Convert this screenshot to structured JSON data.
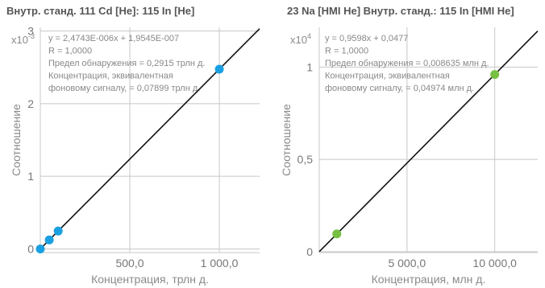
{
  "chart_data": [
    {
      "type": "scatter",
      "title": "Внутр. станд. 111 Cd [He]: 115 In [He]",
      "xlabel": "Концентрация, трлн д.",
      "ylabel": "Соотношение",
      "y_multiplier": "x10",
      "y_multiplier_exp": "-3",
      "xlim": [
        0,
        1225
      ],
      "ylim": [
        -0.05,
        3.05
      ],
      "x_ticks": [
        500,
        1000
      ],
      "x_tick_labels": [
        "500,0",
        "1 000,0"
      ],
      "y_ticks": [
        0,
        1,
        2,
        3
      ],
      "y_tick_labels": [
        "0",
        "1",
        "2",
        "3"
      ],
      "grid": true,
      "point_color": "#1aa0e0",
      "points": [
        {
          "x": 0,
          "y": 0.0002
        },
        {
          "x": 50,
          "y": 0.124
        },
        {
          "x": 100,
          "y": 0.247
        },
        {
          "x": 1000,
          "y": 2.4745
        }
      ],
      "fit": {
        "slope": 0.0024743,
        "intercept": 0.00019545
      },
      "annotations": [
        "y = 2,4743E-006x + 1,9545E-007",
        "R = 1,0000",
        "Предел обнаружения = 0,2915 трлн д.",
        "Концентрация, эквивалентная",
        "фоновому сигналу, = 0,07899 трлн д."
      ]
    },
    {
      "type": "scatter",
      "title": "23 Na [HMI He] Внутр. станд.: 115 In [HMI He]",
      "xlabel": "Концентрация, млн д.",
      "ylabel": "Соотношение",
      "y_multiplier": "x10",
      "y_multiplier_exp": "4",
      "xlim": [
        0,
        12450
      ],
      "ylim": [
        -0.005,
        1.215
      ],
      "x_ticks": [
        5000,
        10000
      ],
      "x_tick_labels": [
        "5 000,0",
        "10 000,0"
      ],
      "y_ticks": [
        0,
        0.5,
        1
      ],
      "y_tick_labels": [
        "0",
        "0,5",
        "1"
      ],
      "grid": true,
      "point_color": "#78c043",
      "points": [
        {
          "x": 1000,
          "y": 0.0964
        },
        {
          "x": 10000,
          "y": 0.9598
        }
      ],
      "fit": {
        "slope": 9.598e-05,
        "intercept": 4.77e-06
      },
      "annotations": [
        "y = 0,9598x + 0,0477",
        "R = 1,0000",
        "Предел обнаружения = 0,008635 млн д.",
        "Концентрация, эквивалентная",
        "фоновому сигналу, = 0,04974 млн д."
      ]
    }
  ]
}
